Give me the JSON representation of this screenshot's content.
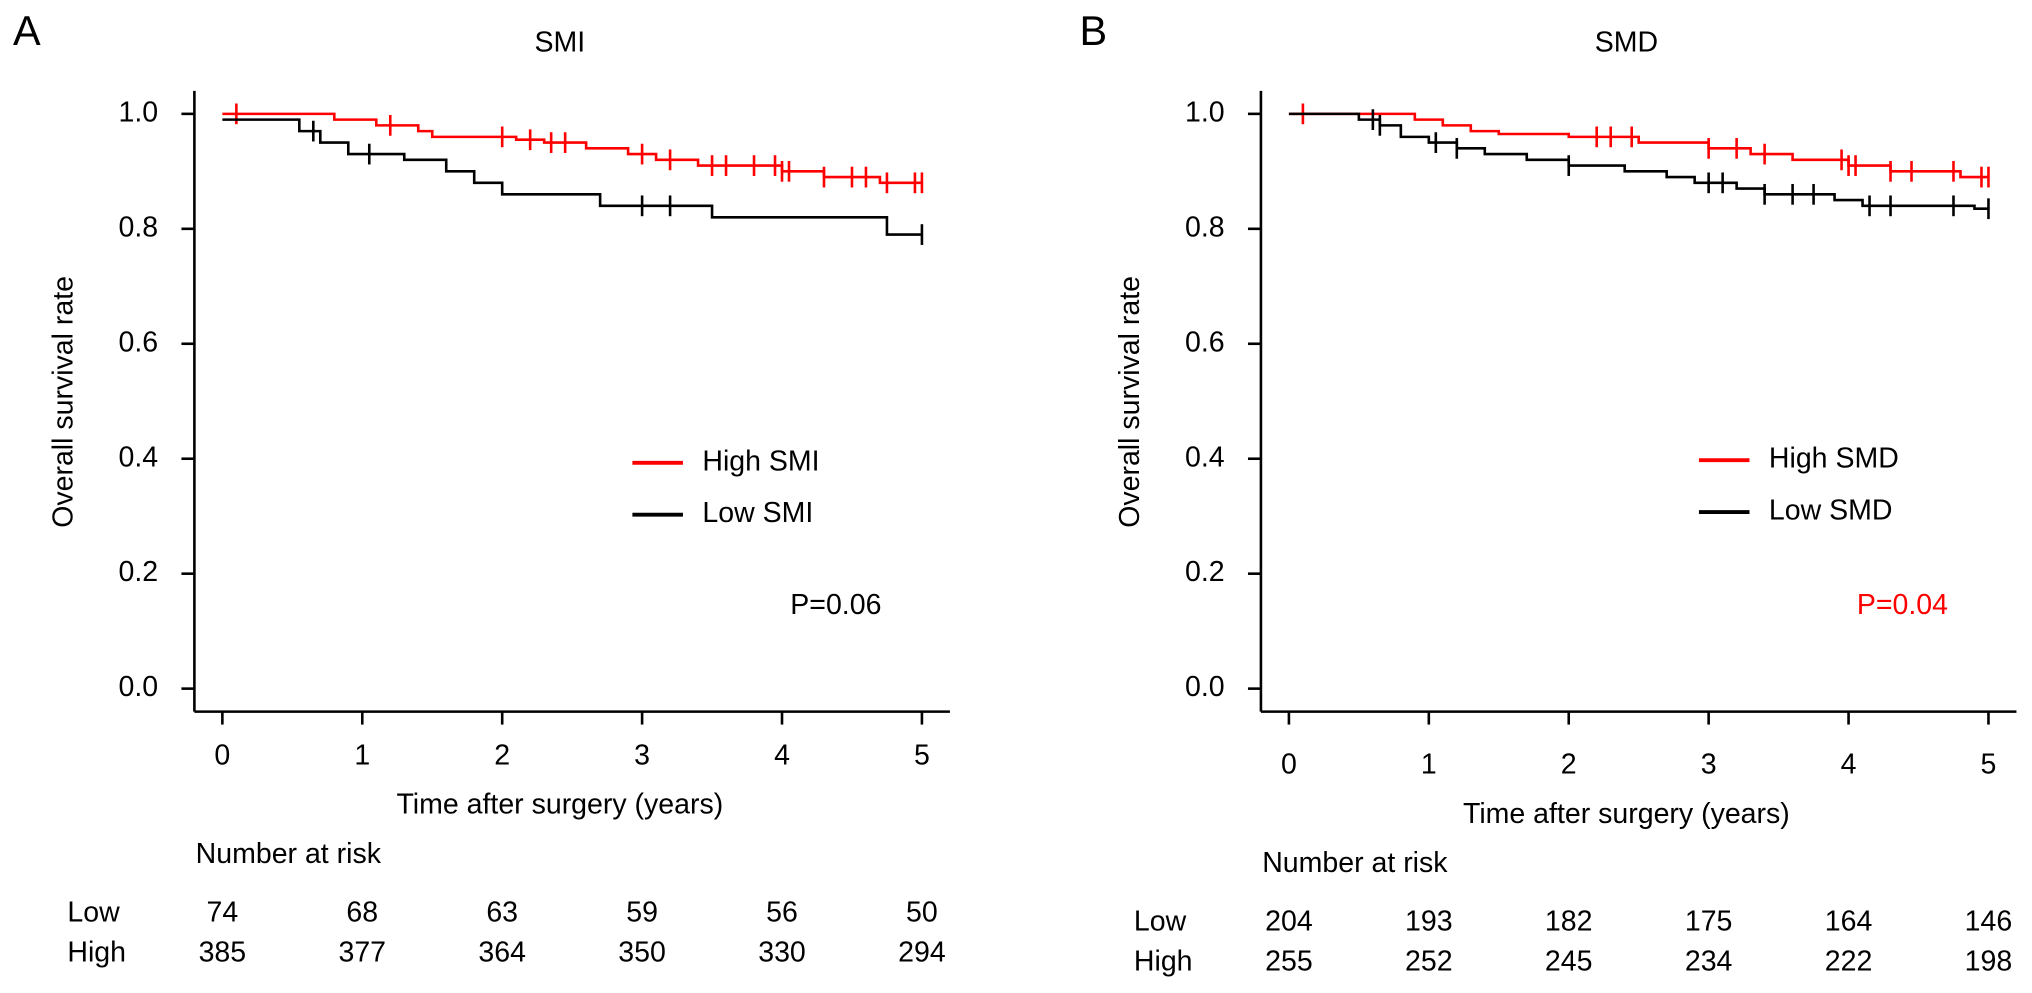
{
  "chart_data": [
    {
      "type": "step",
      "panel_label": "A",
      "title": "SMI",
      "x_label": "Time after surgery (years)",
      "y_label": "Overall survival rate",
      "xlim": [
        -0.2,
        5.2
      ],
      "ylim": [
        -0.04,
        1.04
      ],
      "xticks": [
        0,
        1,
        2,
        3,
        4,
        5
      ],
      "yticks": [
        {
          "value": 0,
          "label": "0.0"
        },
        0.2,
        0.4,
        0.6,
        0.8,
        {
          "value": 1,
          "label": "1.0"
        }
      ],
      "legend": "right",
      "series": [
        {
          "name": "High SMI",
          "color": "#ff0000",
          "x": [
            0,
            0.8,
            1.1,
            1.4,
            1.5,
            2.1,
            2.3,
            2.6,
            2.9,
            3.1,
            3.4,
            4.0,
            4.3,
            4.7,
            5.0
          ],
          "values": [
            1.0,
            0.99,
            0.98,
            0.97,
            0.96,
            0.955,
            0.95,
            0.94,
            0.93,
            0.92,
            0.91,
            0.9,
            0.89,
            0.88,
            0.88
          ],
          "censor_x": [
            0.1,
            1.2,
            2.0,
            2.2,
            2.35,
            2.45,
            3.0,
            3.2,
            3.5,
            3.6,
            3.8,
            3.95,
            4.0,
            4.05,
            4.3,
            4.5,
            4.6,
            4.75,
            4.95,
            5.0
          ]
        },
        {
          "name": "Low SMI",
          "color": "#000000",
          "x": [
            0,
            0.55,
            0.7,
            0.9,
            1.3,
            1.6,
            1.8,
            2.0,
            2.7,
            3.5,
            4.75,
            5.0
          ],
          "values": [
            0.99,
            0.97,
            0.95,
            0.93,
            0.92,
            0.9,
            0.88,
            0.86,
            0.84,
            0.82,
            0.79,
            0.79
          ],
          "censor_x": [
            0.65,
            1.05,
            3.0,
            3.2,
            5.0
          ]
        }
      ],
      "annotation": {
        "text": "P=0.06",
        "color": "#000000"
      },
      "risk_table": {
        "title": "Number at risk",
        "times": [
          0,
          1,
          2,
          3,
          4,
          5
        ],
        "rows": [
          {
            "label": "Low",
            "values": [
              74,
              68,
              63,
              59,
              56,
              50
            ]
          },
          {
            "label": "High",
            "values": [
              385,
              377,
              364,
              350,
              330,
              294
            ]
          }
        ]
      }
    },
    {
      "type": "step",
      "panel_label": "B",
      "title": "SMD",
      "x_label": "Time after surgery (years)",
      "y_label": "Overall survival rate",
      "xlim": [
        -0.2,
        5.2
      ],
      "ylim": [
        -0.04,
        1.04
      ],
      "xticks": [
        0,
        1,
        2,
        3,
        4,
        5
      ],
      "yticks": [
        {
          "value": 0,
          "label": "0.0"
        },
        0.2,
        0.4,
        0.6,
        0.8,
        {
          "value": 1,
          "label": "1.0"
        }
      ],
      "legend": "right",
      "series": [
        {
          "name": "High SMD",
          "color": "#ff0000",
          "x": [
            0,
            0.9,
            1.1,
            1.3,
            1.5,
            2.0,
            2.5,
            3.0,
            3.3,
            3.6,
            4.0,
            4.3,
            4.8,
            5.0
          ],
          "values": [
            1.0,
            0.99,
            0.98,
            0.97,
            0.965,
            0.96,
            0.95,
            0.94,
            0.93,
            0.92,
            0.91,
            0.9,
            0.89,
            0.89
          ],
          "censor_x": [
            0.1,
            2.2,
            2.3,
            2.45,
            3.0,
            3.2,
            3.4,
            3.95,
            4.0,
            4.05,
            4.3,
            4.45,
            4.75,
            4.95,
            5.0
          ]
        },
        {
          "name": "Low SMD",
          "color": "#000000",
          "x": [
            0,
            0.5,
            0.65,
            0.8,
            1.0,
            1.2,
            1.4,
            1.7,
            2.0,
            2.4,
            2.7,
            2.9,
            3.2,
            3.4,
            3.9,
            4.1,
            4.9,
            5.0
          ],
          "values": [
            1.0,
            0.99,
            0.98,
            0.96,
            0.95,
            0.94,
            0.93,
            0.92,
            0.91,
            0.9,
            0.89,
            0.88,
            0.87,
            0.86,
            0.85,
            0.84,
            0.835,
            0.835
          ],
          "censor_x": [
            0.6,
            0.65,
            1.05,
            1.2,
            2.0,
            3.0,
            3.1,
            3.4,
            3.6,
            3.75,
            4.15,
            4.3,
            4.75,
            5.0
          ]
        }
      ],
      "annotation": {
        "text": "P=0.04",
        "color": "#ff0000"
      },
      "risk_table": {
        "title": "Number at risk",
        "times": [
          0,
          1,
          2,
          3,
          4,
          5
        ],
        "rows": [
          {
            "label": "Low",
            "values": [
              204,
              193,
              182,
              175,
              164,
              146
            ]
          },
          {
            "label": "High",
            "values": [
              255,
              252,
              245,
              234,
              222,
              198
            ]
          }
        ]
      }
    }
  ]
}
